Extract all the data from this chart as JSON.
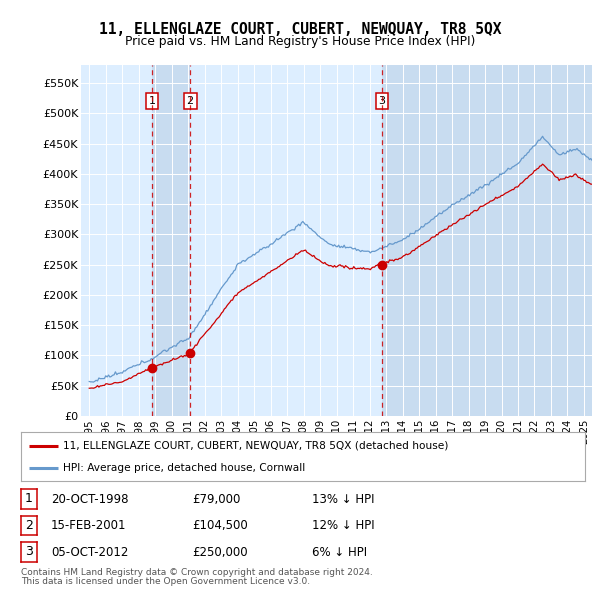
{
  "title": "11, ELLENGLAZE COURT, CUBERT, NEWQUAY, TR8 5QX",
  "subtitle": "Price paid vs. HM Land Registry's House Price Index (HPI)",
  "red_label": "11, ELLENGLAZE COURT, CUBERT, NEWQUAY, TR8 5QX (detached house)",
  "blue_label": "HPI: Average price, detached house, Cornwall",
  "sales": [
    {
      "num": 1,
      "date": "20-OCT-1998",
      "price": 79000,
      "pct": "13%",
      "dir": "↓",
      "year": 1998.8
    },
    {
      "num": 2,
      "date": "15-FEB-2001",
      "price": 104500,
      "pct": "12%",
      "dir": "↓",
      "year": 2001.12
    },
    {
      "num": 3,
      "date": "05-OCT-2012",
      "price": 250000,
      "pct": "6%",
      "dir": "↓",
      "year": 2012.75
    }
  ],
  "footnote1": "Contains HM Land Registry data © Crown copyright and database right 2024.",
  "footnote2": "This data is licensed under the Open Government Licence v3.0.",
  "ylim": [
    0,
    580000
  ],
  "yticks": [
    0,
    50000,
    100000,
    150000,
    200000,
    250000,
    300000,
    350000,
    400000,
    450000,
    500000,
    550000
  ],
  "ytick_labels": [
    "£0",
    "£50K",
    "£100K",
    "£150K",
    "£200K",
    "£250K",
    "£300K",
    "£350K",
    "£400K",
    "£450K",
    "£500K",
    "£550K"
  ],
  "xlim_start": 1994.5,
  "xlim_end": 2025.5,
  "xticks": [
    1995,
    1996,
    1997,
    1998,
    1999,
    2000,
    2001,
    2002,
    2003,
    2004,
    2005,
    2006,
    2007,
    2008,
    2009,
    2010,
    2011,
    2012,
    2013,
    2014,
    2015,
    2016,
    2017,
    2018,
    2019,
    2020,
    2021,
    2022,
    2023,
    2024,
    2025
  ],
  "red_color": "#cc0000",
  "blue_color": "#6699cc",
  "plot_bg": "#ddeeff",
  "sale_box_color": "#cc0000",
  "dashed_color": "#cc0000",
  "shade_color": "#c8d8ee"
}
